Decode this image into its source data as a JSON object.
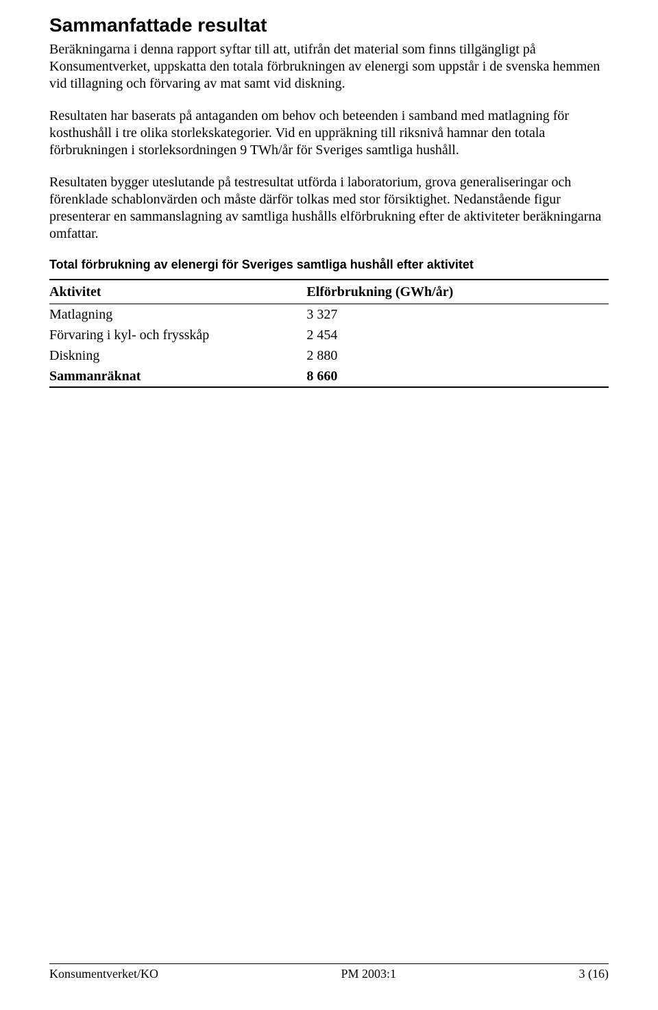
{
  "heading": "Sammanfattade resultat",
  "paragraphs": {
    "p1": "Beräkningarna i denna rapport syftar till att, utifrån det material som finns tillgängligt på Konsumentverket, uppskatta den totala förbrukningen av elenergi som uppstår i de svenska hemmen vid tillagning och förvaring av mat samt vid diskning.",
    "p2": "Resultaten har baserats på antaganden om behov och beteenden i samband med matlagning för kosthushåll i tre olika storlekskategorier. Vid en uppräkning till riksnivå hamnar den totala förbrukningen i storleksordningen 9 TWh/år för Sveriges samtliga hushåll.",
    "p3": "Resultaten bygger uteslutande på testresultat utförda i laboratorium, grova generaliseringar och förenklade schablonvärden och måste därför tolkas med stor försiktighet. Nedanstående figur presenterar en sammanslagning av samtliga hushålls elförbrukning efter de aktiviteter beräkningarna omfattar.",
    "caption": "Total förbrukning av elenergi för Sveriges samtliga hushåll efter aktivitet"
  },
  "table": {
    "columns": [
      "Aktivitet",
      "Elförbrukning (GWh/år)"
    ],
    "rows": [
      [
        "Matlagning",
        "3 327"
      ],
      [
        "Förvaring i kyl- och frysskåp",
        "2 454"
      ],
      [
        "Diskning",
        "2 880"
      ]
    ],
    "total": [
      "Sammanräknat",
      "8 660"
    ]
  },
  "footer": {
    "left": "Konsumentverket/KO",
    "center": "PM 2003:1",
    "right": "3 (16)"
  }
}
